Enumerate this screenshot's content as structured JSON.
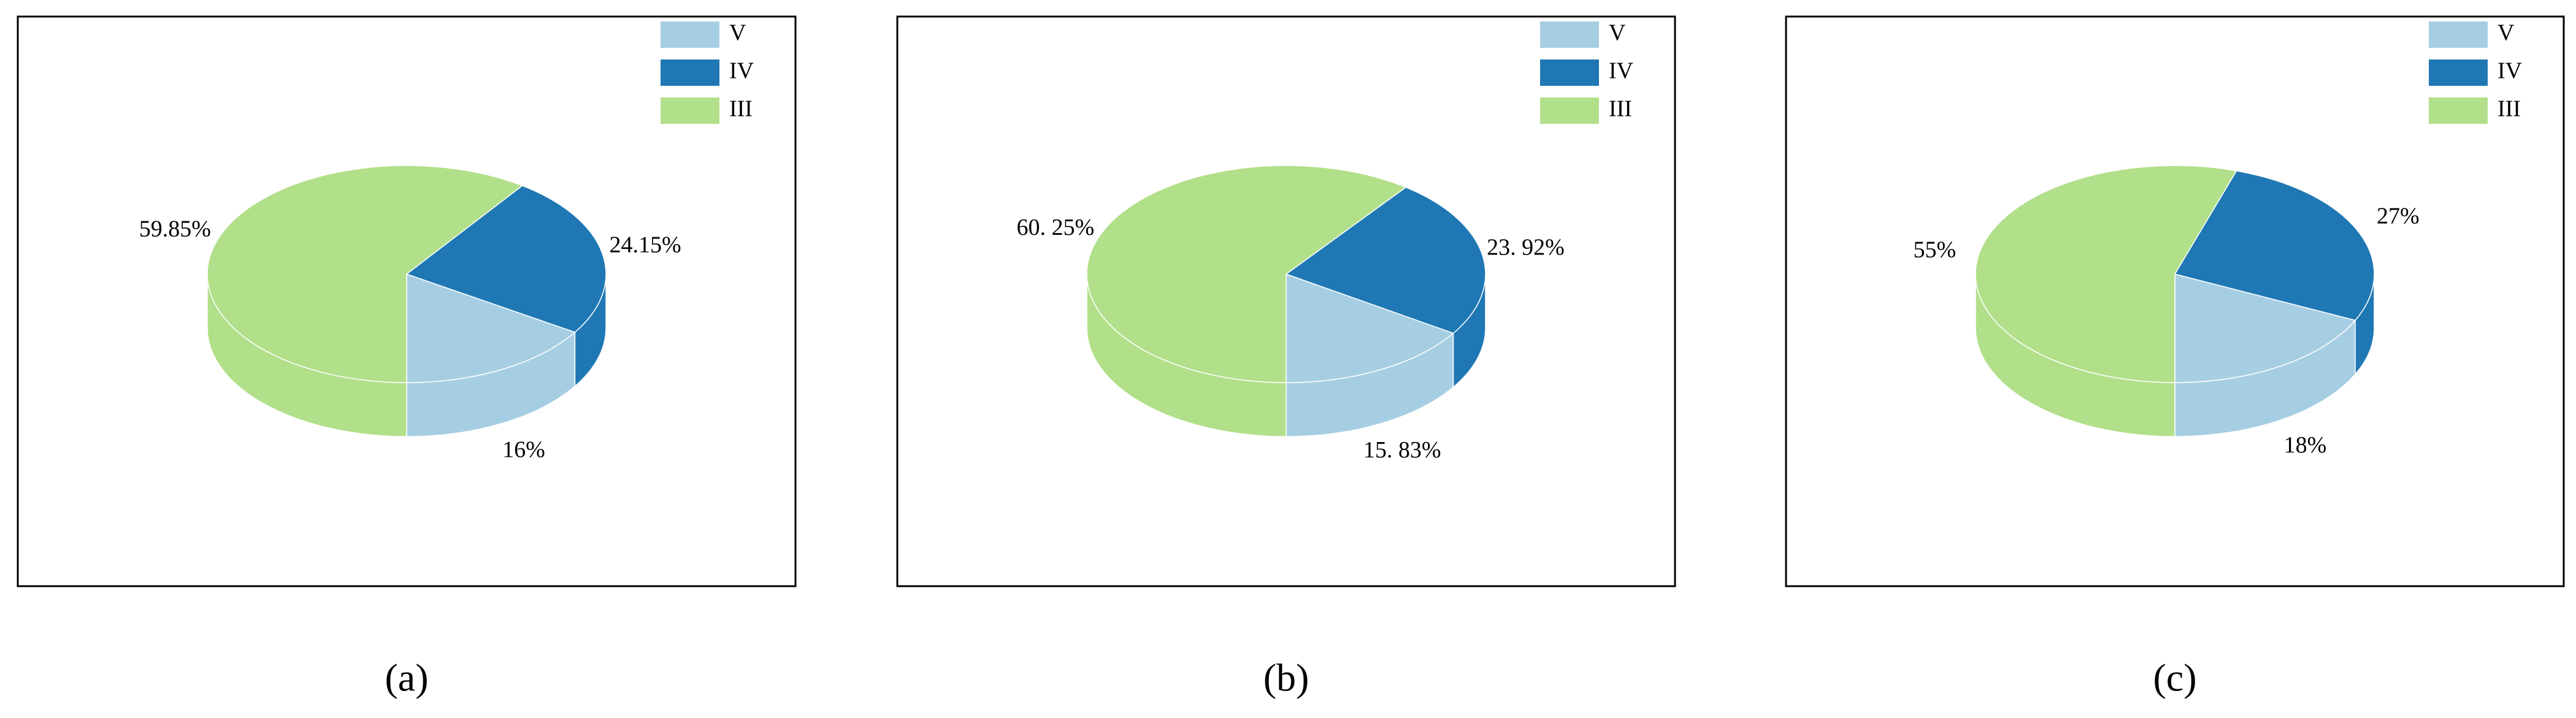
{
  "chart_data": [
    {
      "type": "pie",
      "caption": "(a)",
      "categories": [
        "V",
        "IV",
        "III"
      ],
      "values": [
        16,
        24.15,
        59.85
      ],
      "value_labels": [
        "16%",
        "24.15%",
        "59.85%"
      ],
      "colors": [
        "#a6cee3",
        "#1f78b4",
        "#b2df8a"
      ],
      "legend": "top-right"
    },
    {
      "type": "pie",
      "caption": "(b)",
      "categories": [
        "V",
        "IV",
        "III"
      ],
      "values": [
        15.83,
        23.92,
        60.25
      ],
      "value_labels": [
        "15. 83%",
        "23. 92%",
        "60. 25%"
      ],
      "colors": [
        "#a6cee3",
        "#1f78b4",
        "#b2df8a"
      ],
      "legend": "top-right"
    },
    {
      "type": "pie",
      "caption": "(c)",
      "categories": [
        "V",
        "IV",
        "III"
      ],
      "values": [
        18,
        27,
        55
      ],
      "value_labels": [
        "18%",
        "27%",
        "55%"
      ],
      "colors": [
        "#a6cee3",
        "#1f78b4",
        "#b2df8a"
      ],
      "legend": "top-right"
    }
  ]
}
